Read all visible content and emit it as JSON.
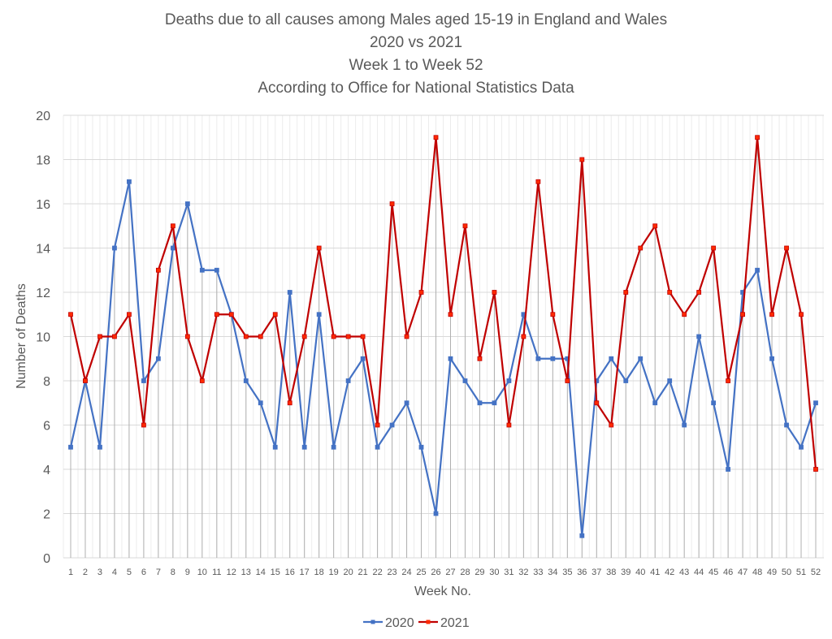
{
  "chart_data": {
    "type": "line",
    "title": [
      "Deaths due to all causes among Males aged 15-19 in England and Wales",
      "2020 vs 2021",
      "Week 1 to Week 52",
      "According to Office for National Statistics Data"
    ],
    "xlabel": "Week No.",
    "ylabel": "Number of Deaths",
    "ylim": [
      0,
      20
    ],
    "yticks": [
      "0",
      "2",
      "4",
      "6",
      "8",
      "10",
      "12",
      "14",
      "16",
      "18",
      "20"
    ],
    "x": [
      "1",
      "2",
      "3",
      "4",
      "5",
      "6",
      "7",
      "8",
      "9",
      "10",
      "11",
      "12",
      "13",
      "14",
      "15",
      "16",
      "17",
      "18",
      "19",
      "20",
      "21",
      "22",
      "23",
      "24",
      "25",
      "26",
      "27",
      "28",
      "29",
      "30",
      "31",
      "32",
      "33",
      "34",
      "35",
      "36",
      "37",
      "38",
      "39",
      "40",
      "41",
      "42",
      "43",
      "44",
      "45",
      "46",
      "47",
      "48",
      "49",
      "50",
      "51",
      "52"
    ],
    "grid": true,
    "legend_position": "bottom",
    "series": [
      {
        "name": "2020",
        "color": "#4472C4",
        "values": [
          5,
          8,
          5,
          14,
          17,
          8,
          9,
          14,
          16,
          13,
          13,
          11,
          8,
          7,
          5,
          12,
          5,
          11,
          5,
          8,
          9,
          5,
          6,
          7,
          5,
          2,
          9,
          8,
          7,
          7,
          8,
          11,
          9,
          9,
          9,
          1,
          8,
          9,
          8,
          9,
          7,
          8,
          6,
          10,
          7,
          4,
          12,
          13,
          9,
          6,
          5,
          7
        ]
      },
      {
        "name": "2021",
        "color": "#C00000",
        "values": [
          11,
          8,
          10,
          10,
          11,
          6,
          13,
          15,
          10,
          8,
          11,
          11,
          10,
          10,
          11,
          7,
          10,
          14,
          10,
          10,
          10,
          6,
          16,
          10,
          12,
          19,
          11,
          15,
          9,
          12,
          6,
          10,
          17,
          11,
          8,
          18,
          7,
          6,
          12,
          14,
          15,
          12,
          11,
          12,
          14,
          8,
          11,
          19,
          11,
          14,
          11,
          4
        ]
      }
    ]
  }
}
